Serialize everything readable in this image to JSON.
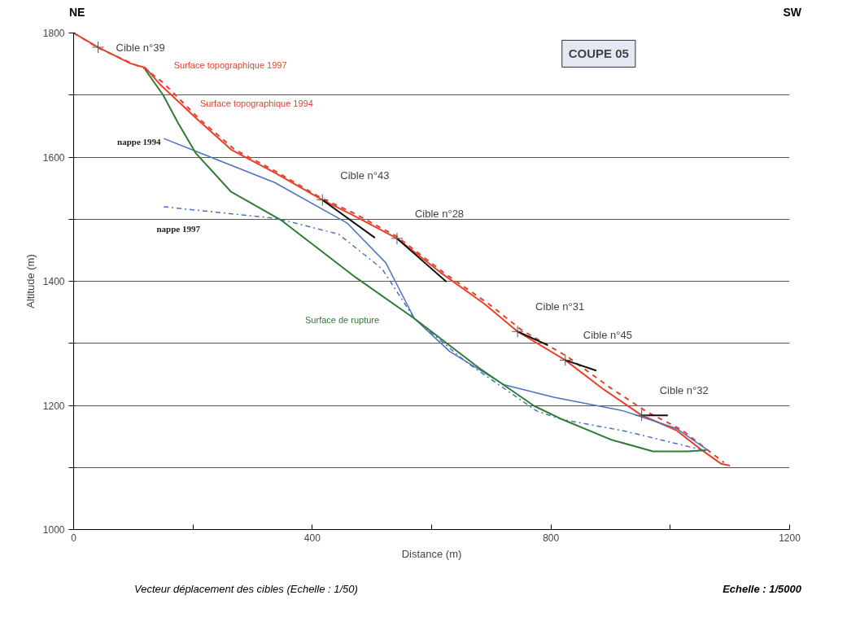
{
  "chart_data": {
    "type": "line",
    "title": "COUPE 05",
    "xlabel": "Distance (m)",
    "ylabel": "Altitude (m)",
    "xlim": [
      0,
      1200
    ],
    "ylim": [
      1000,
      1800
    ],
    "xticks": [
      0,
      {
        "value": 200,
        "label": null
      },
      400,
      {
        "value": 600,
        "label": null
      },
      800,
      {
        "value": 1000,
        "label": null
      },
      1200
    ],
    "yticks": [
      1000,
      {
        "value": 1100,
        "label": null
      },
      1200,
      {
        "value": 1300,
        "label": null
      },
      1400,
      {
        "value": 1500,
        "label": null
      },
      1600,
      {
        "value": 1700,
        "label": null
      },
      1800
    ],
    "grid": "y",
    "marker": "none",
    "series": [
      {
        "name": "Surface topographique 1997",
        "color": "#e8402a",
        "line_style": "dashed",
        "x": [
          0,
          41,
          95,
          120,
          150,
          210,
          270,
          337,
          417,
          469,
          542,
          620,
          695,
          750,
          830,
          900,
          960,
          1020,
          1060,
          1090
        ],
        "values": [
          1800,
          1776,
          1752,
          1742,
          1720,
          1662,
          1612,
          1578,
          1533,
          1510,
          1472,
          1414,
          1364,
          1322,
          1277,
          1228,
          1190,
          1160,
          1130,
          1108
        ]
      },
      {
        "name": "Surface topographique 1994",
        "color": "#e8402a",
        "line_style": "solid",
        "x": [
          0,
          41,
          95,
          120,
          146,
          205,
          264,
          337,
          417,
          469,
          542,
          615,
          688,
          744,
          824,
          888,
          952,
          1010,
          1050,
          1085,
          1100
        ],
        "values": [
          1800,
          1777,
          1751,
          1744,
          1716,
          1663,
          1612,
          1575,
          1531,
          1506,
          1469,
          1414,
          1364,
          1319,
          1273,
          1226,
          1184,
          1160,
          1130,
          1106,
          1103
        ]
      },
      {
        "name": "nappe 1994",
        "color": "#4a72c0",
        "line_style": "solid",
        "x": [
          151,
          337,
          458,
          523,
          571,
          630,
          722,
          805,
          922,
          1010,
          1064
        ],
        "values": [
          1630,
          1559,
          1494,
          1430,
          1340,
          1287,
          1233,
          1213,
          1191,
          1163,
          1127
        ]
      },
      {
        "name": "nappe 1997",
        "color": "#4a72c0",
        "line_style": "dashdot",
        "x": [
          151,
          341,
          444,
          517,
          571,
          659,
          776,
          820,
          922,
          1059
        ],
        "values": [
          1520,
          1501,
          1476,
          1420,
          1340,
          1269,
          1191,
          1177,
          1159,
          1127
        ]
      },
      {
        "name": "Surface de rupture",
        "color": "#2e7d32",
        "line_style": "solid",
        "x": [
          120,
          150,
          175,
          205,
          264,
          347,
          473,
          571,
          680,
          772,
          820,
          900,
          971,
          1029,
          1060
        ],
        "values": [
          1741,
          1700,
          1655,
          1606,
          1544,
          1499,
          1406,
          1340,
          1260,
          1199,
          1177,
          1145,
          1126,
          1126,
          1128
        ]
      },
      {
        "color": "#111111",
        "line_style": "solid",
        "x": [
          417,
          505
        ],
        "values": [
          1531,
          1470
        ]
      },
      {
        "color": "#111111",
        "line_style": "solid",
        "x": [
          542,
          625
        ],
        "values": [
          1469,
          1399
        ]
      },
      {
        "color": "#111111",
        "line_style": "solid",
        "x": [
          744,
          795
        ],
        "values": [
          1319,
          1297
        ]
      },
      {
        "color": "#111111",
        "line_style": "solid",
        "x": [
          824,
          876
        ],
        "values": [
          1273,
          1256
        ]
      },
      {
        "color": "#111111",
        "line_style": "solid",
        "x": [
          952,
          996
        ],
        "values": [
          1184,
          1184
        ]
      }
    ],
    "annotations": [
      "NE",
      "SW",
      "Vecteur déplacement des cibles (Echelle : 1/50)",
      "Echelle : 1/5000",
      {
        "text": "Cible n°39",
        "x": 41,
        "y": 1777
      },
      {
        "text": "Cible n°43",
        "x": 417,
        "y": 1531
      },
      {
        "text": "Cible n°28",
        "x": 542,
        "y": 1469
      },
      {
        "text": "Cible n°31",
        "x": 744,
        "y": 1319
      },
      {
        "text": "Cible n°45",
        "x": 824,
        "y": 1273
      },
      {
        "text": "Cible n°32",
        "x": 952,
        "y": 1184
      }
    ]
  }
}
